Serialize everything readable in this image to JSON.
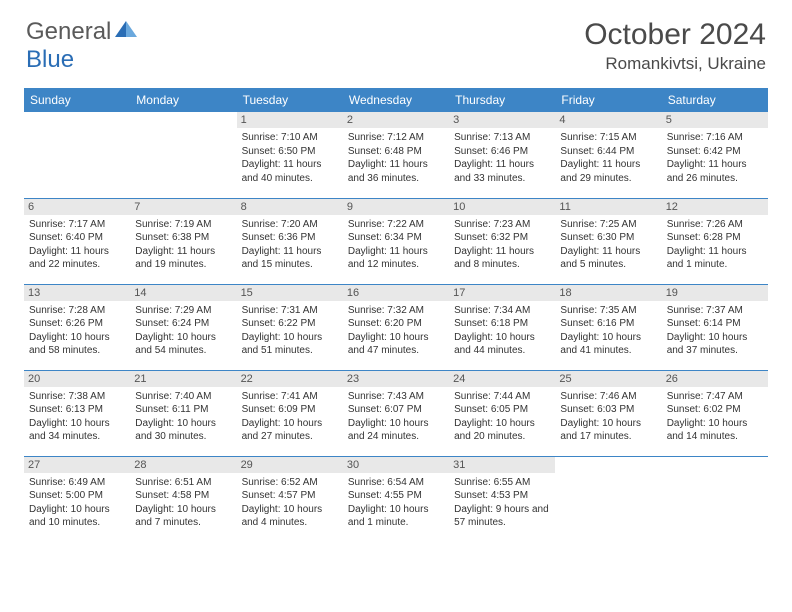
{
  "logo": {
    "general": "General",
    "blue": "Blue"
  },
  "title": "October 2024",
  "location": "Romankivtsi, Ukraine",
  "colors": {
    "header_bg": "#3d85c6",
    "header_fg": "#ffffff",
    "daynum_bg": "#e8e8e8",
    "daynum_fg": "#555555",
    "border": "#3d85c6",
    "text": "#333333",
    "title_color": "#4a4a4a",
    "logo_gray": "#5a5a5a",
    "logo_blue": "#2a6db5"
  },
  "weekdays": [
    "Sunday",
    "Monday",
    "Tuesday",
    "Wednesday",
    "Thursday",
    "Friday",
    "Saturday"
  ],
  "weeks": [
    [
      null,
      null,
      {
        "day": "1",
        "sunrise": "Sunrise: 7:10 AM",
        "sunset": "Sunset: 6:50 PM",
        "daylight": "Daylight: 11 hours and 40 minutes."
      },
      {
        "day": "2",
        "sunrise": "Sunrise: 7:12 AM",
        "sunset": "Sunset: 6:48 PM",
        "daylight": "Daylight: 11 hours and 36 minutes."
      },
      {
        "day": "3",
        "sunrise": "Sunrise: 7:13 AM",
        "sunset": "Sunset: 6:46 PM",
        "daylight": "Daylight: 11 hours and 33 minutes."
      },
      {
        "day": "4",
        "sunrise": "Sunrise: 7:15 AM",
        "sunset": "Sunset: 6:44 PM",
        "daylight": "Daylight: 11 hours and 29 minutes."
      },
      {
        "day": "5",
        "sunrise": "Sunrise: 7:16 AM",
        "sunset": "Sunset: 6:42 PM",
        "daylight": "Daylight: 11 hours and 26 minutes."
      }
    ],
    [
      {
        "day": "6",
        "sunrise": "Sunrise: 7:17 AM",
        "sunset": "Sunset: 6:40 PM",
        "daylight": "Daylight: 11 hours and 22 minutes."
      },
      {
        "day": "7",
        "sunrise": "Sunrise: 7:19 AM",
        "sunset": "Sunset: 6:38 PM",
        "daylight": "Daylight: 11 hours and 19 minutes."
      },
      {
        "day": "8",
        "sunrise": "Sunrise: 7:20 AM",
        "sunset": "Sunset: 6:36 PM",
        "daylight": "Daylight: 11 hours and 15 minutes."
      },
      {
        "day": "9",
        "sunrise": "Sunrise: 7:22 AM",
        "sunset": "Sunset: 6:34 PM",
        "daylight": "Daylight: 11 hours and 12 minutes."
      },
      {
        "day": "10",
        "sunrise": "Sunrise: 7:23 AM",
        "sunset": "Sunset: 6:32 PM",
        "daylight": "Daylight: 11 hours and 8 minutes."
      },
      {
        "day": "11",
        "sunrise": "Sunrise: 7:25 AM",
        "sunset": "Sunset: 6:30 PM",
        "daylight": "Daylight: 11 hours and 5 minutes."
      },
      {
        "day": "12",
        "sunrise": "Sunrise: 7:26 AM",
        "sunset": "Sunset: 6:28 PM",
        "daylight": "Daylight: 11 hours and 1 minute."
      }
    ],
    [
      {
        "day": "13",
        "sunrise": "Sunrise: 7:28 AM",
        "sunset": "Sunset: 6:26 PM",
        "daylight": "Daylight: 10 hours and 58 minutes."
      },
      {
        "day": "14",
        "sunrise": "Sunrise: 7:29 AM",
        "sunset": "Sunset: 6:24 PM",
        "daylight": "Daylight: 10 hours and 54 minutes."
      },
      {
        "day": "15",
        "sunrise": "Sunrise: 7:31 AM",
        "sunset": "Sunset: 6:22 PM",
        "daylight": "Daylight: 10 hours and 51 minutes."
      },
      {
        "day": "16",
        "sunrise": "Sunrise: 7:32 AM",
        "sunset": "Sunset: 6:20 PM",
        "daylight": "Daylight: 10 hours and 47 minutes."
      },
      {
        "day": "17",
        "sunrise": "Sunrise: 7:34 AM",
        "sunset": "Sunset: 6:18 PM",
        "daylight": "Daylight: 10 hours and 44 minutes."
      },
      {
        "day": "18",
        "sunrise": "Sunrise: 7:35 AM",
        "sunset": "Sunset: 6:16 PM",
        "daylight": "Daylight: 10 hours and 41 minutes."
      },
      {
        "day": "19",
        "sunrise": "Sunrise: 7:37 AM",
        "sunset": "Sunset: 6:14 PM",
        "daylight": "Daylight: 10 hours and 37 minutes."
      }
    ],
    [
      {
        "day": "20",
        "sunrise": "Sunrise: 7:38 AM",
        "sunset": "Sunset: 6:13 PM",
        "daylight": "Daylight: 10 hours and 34 minutes."
      },
      {
        "day": "21",
        "sunrise": "Sunrise: 7:40 AM",
        "sunset": "Sunset: 6:11 PM",
        "daylight": "Daylight: 10 hours and 30 minutes."
      },
      {
        "day": "22",
        "sunrise": "Sunrise: 7:41 AM",
        "sunset": "Sunset: 6:09 PM",
        "daylight": "Daylight: 10 hours and 27 minutes."
      },
      {
        "day": "23",
        "sunrise": "Sunrise: 7:43 AM",
        "sunset": "Sunset: 6:07 PM",
        "daylight": "Daylight: 10 hours and 24 minutes."
      },
      {
        "day": "24",
        "sunrise": "Sunrise: 7:44 AM",
        "sunset": "Sunset: 6:05 PM",
        "daylight": "Daylight: 10 hours and 20 minutes."
      },
      {
        "day": "25",
        "sunrise": "Sunrise: 7:46 AM",
        "sunset": "Sunset: 6:03 PM",
        "daylight": "Daylight: 10 hours and 17 minutes."
      },
      {
        "day": "26",
        "sunrise": "Sunrise: 7:47 AM",
        "sunset": "Sunset: 6:02 PM",
        "daylight": "Daylight: 10 hours and 14 minutes."
      }
    ],
    [
      {
        "day": "27",
        "sunrise": "Sunrise: 6:49 AM",
        "sunset": "Sunset: 5:00 PM",
        "daylight": "Daylight: 10 hours and 10 minutes."
      },
      {
        "day": "28",
        "sunrise": "Sunrise: 6:51 AM",
        "sunset": "Sunset: 4:58 PM",
        "daylight": "Daylight: 10 hours and 7 minutes."
      },
      {
        "day": "29",
        "sunrise": "Sunrise: 6:52 AM",
        "sunset": "Sunset: 4:57 PM",
        "daylight": "Daylight: 10 hours and 4 minutes."
      },
      {
        "day": "30",
        "sunrise": "Sunrise: 6:54 AM",
        "sunset": "Sunset: 4:55 PM",
        "daylight": "Daylight: 10 hours and 1 minute."
      },
      {
        "day": "31",
        "sunrise": "Sunrise: 6:55 AM",
        "sunset": "Sunset: 4:53 PM",
        "daylight": "Daylight: 9 hours and 57 minutes."
      },
      null,
      null
    ]
  ]
}
